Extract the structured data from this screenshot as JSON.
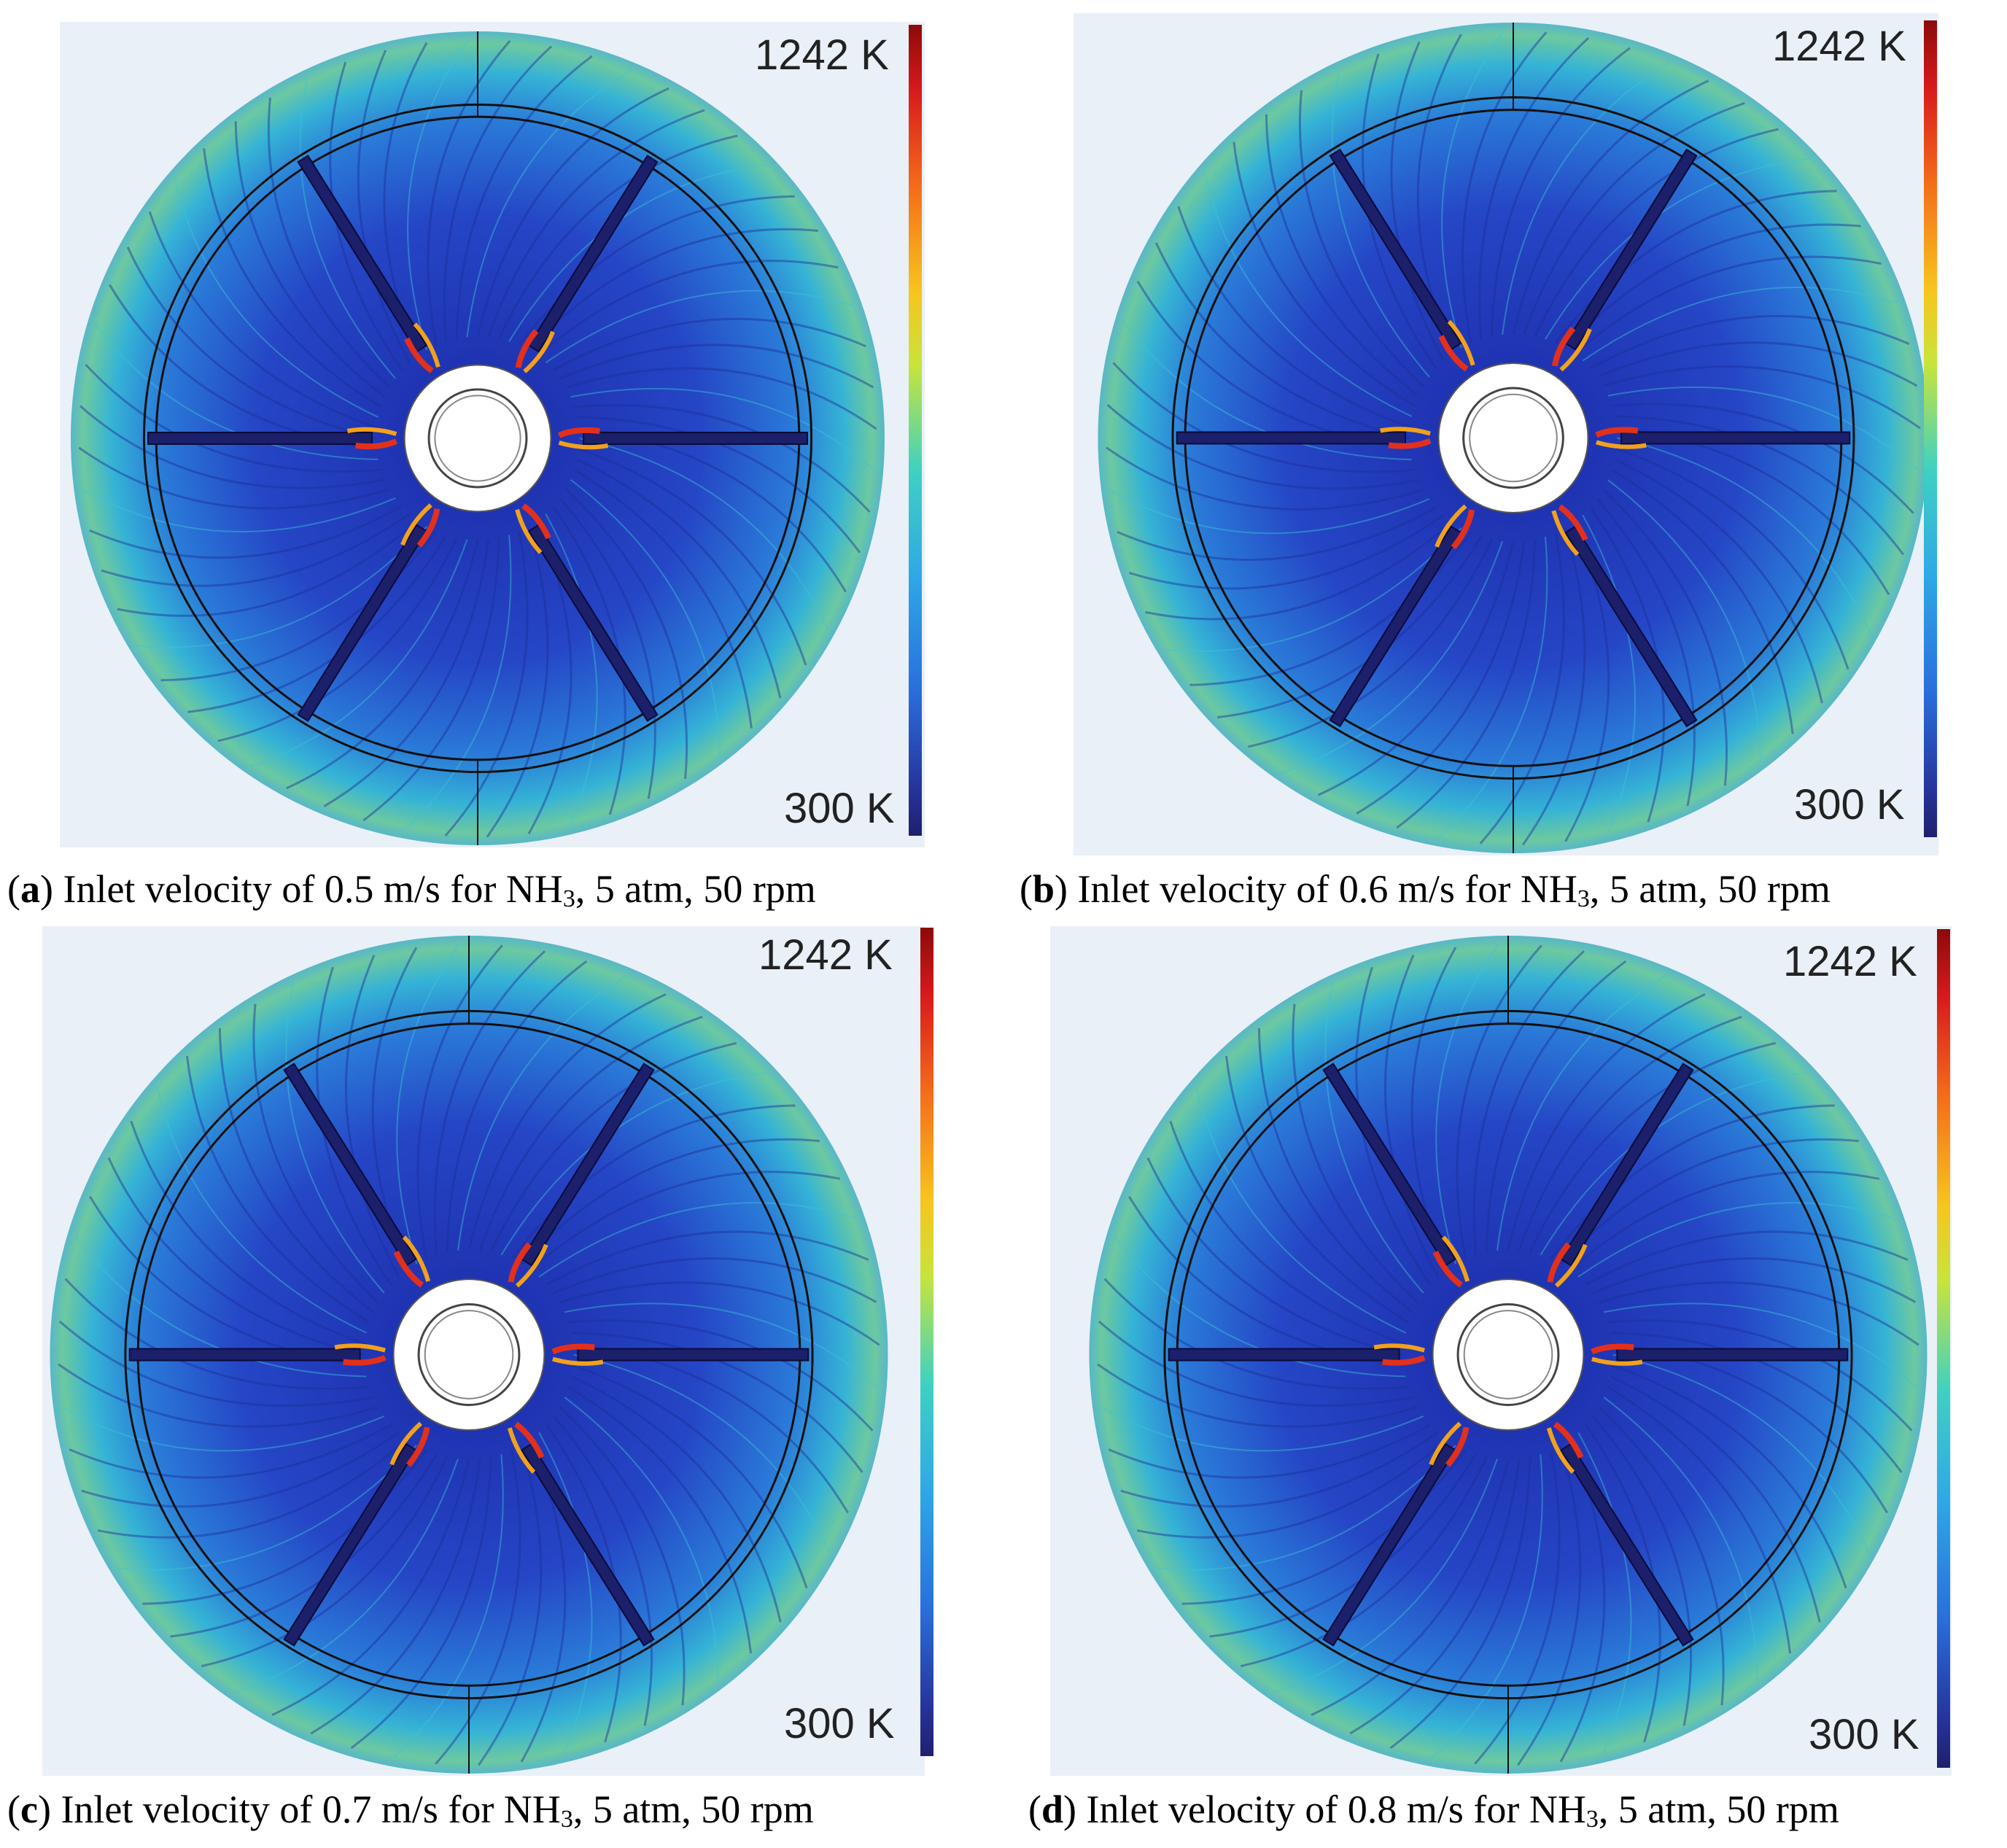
{
  "colorbar": {
    "max_label": "1242 K",
    "min_label": "300 K"
  },
  "panels": [
    {
      "letter": "a",
      "caption_pre": "Inlet velocity of 0.5 m/s for NH",
      "sub": "3",
      "caption_post": ", 5 atm, 50 rpm"
    },
    {
      "letter": "b",
      "caption_pre": "Inlet velocity of 0.6 m/s for NH",
      "sub": "3",
      "caption_post": ", 5 atm, 50 rpm"
    },
    {
      "letter": "c",
      "caption_pre": "Inlet velocity of 0.7 m/s for NH",
      "sub": "3",
      "caption_post": ", 5 atm, 50 rpm"
    },
    {
      "letter": "d",
      "caption_pre": "Inlet velocity of 0.8 m/s for NH",
      "sub": "3",
      "caption_post": ", 5 atm, 50 rpm"
    }
  ]
}
